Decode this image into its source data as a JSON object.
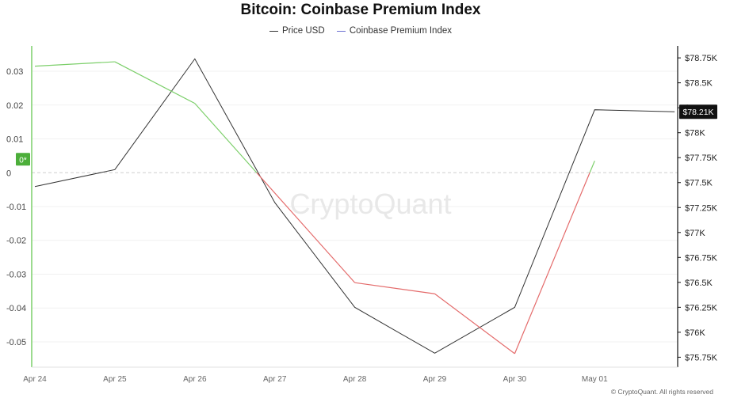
{
  "chart_data": {
    "type": "line",
    "title": "Bitcoin: Coinbase Premium Index",
    "categories": [
      "Apr 24",
      "Apr 25",
      "Apr 26",
      "Apr 27",
      "Apr 28",
      "Apr 29",
      "Apr 30",
      "May 01"
    ],
    "series": [
      {
        "name": "Price USD",
        "axis": "right",
        "color": "#333333",
        "points": [
          {
            "x": 0,
            "y": 77460
          },
          {
            "x": 1,
            "y": 77630
          },
          {
            "x": 2,
            "y": 78740
          },
          {
            "x": 3,
            "y": 77300
          },
          {
            "x": 4,
            "y": 76250
          },
          {
            "x": 5,
            "y": 75790
          },
          {
            "x": 6,
            "y": 76250
          },
          {
            "x": 7,
            "y": 78230
          },
          {
            "x": 8,
            "y": 78210
          }
        ]
      },
      {
        "name": "Coinbase Premium Index",
        "axis": "left",
        "color": "#6b6fd1",
        "positive_color": "#7ccf6a",
        "negative_color": "#e46b6b",
        "points": [
          {
            "x": 0,
            "y": 0.0315
          },
          {
            "x": 1,
            "y": 0.0328
          },
          {
            "x": 2,
            "y": 0.0205
          },
          {
            "x": 4,
            "y": -0.0325
          },
          {
            "x": 5,
            "y": -0.0358
          },
          {
            "x": 6,
            "y": -0.0535
          },
          {
            "x": 7,
            "y": 0.0035
          }
        ]
      }
    ],
    "left_axis": {
      "ticks": [
        0.03,
        0.02,
        0.01,
        0,
        -0.01,
        -0.02,
        -0.03,
        -0.04,
        -0.05
      ],
      "tick_labels": [
        "0.03",
        "0.02",
        "0.01",
        "0",
        "-0.01",
        "-0.02",
        "-0.03",
        "-0.04",
        "-0.05"
      ],
      "ylim": [
        -0.0575,
        0.0375
      ]
    },
    "right_axis": {
      "ticks": [
        78750,
        78500,
        78250,
        78000,
        77750,
        77500,
        77250,
        77000,
        76750,
        76500,
        76250,
        76000,
        75750
      ],
      "tick_labels": [
        "$78.75K",
        "$78.5K",
        "$78.25K",
        "$78K",
        "$77.75K",
        "$77.5K",
        "$77.25K",
        "$77K",
        "$76.75K",
        "$76.5K",
        "$76.25K",
        "$76K",
        "$75.75K"
      ],
      "ylim": [
        75650,
        78870
      ]
    },
    "current_price_label": "$78.21K",
    "zero_badge": "0*",
    "watermark": "CryptoQuant",
    "copyright": "© CryptoQuant. All rights reserved",
    "grid": true,
    "legend_position": "top-center"
  }
}
